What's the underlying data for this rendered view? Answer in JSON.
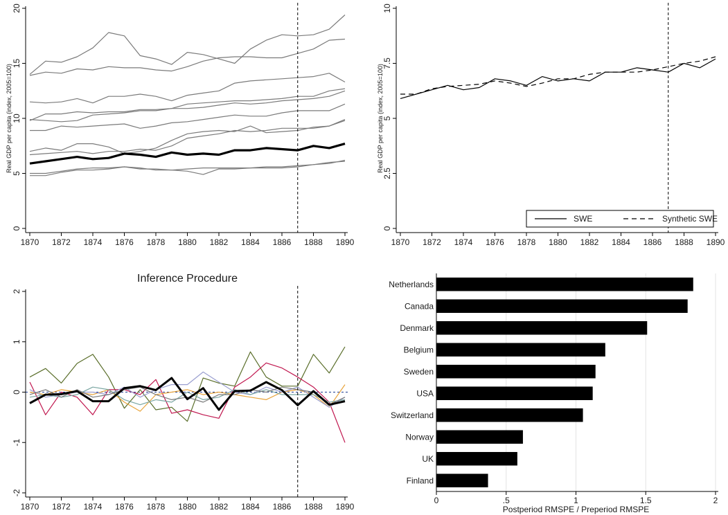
{
  "figure": {
    "background": "#ffffff"
  },
  "chart_data": [
    {
      "type": "line",
      "panel": "top-left",
      "title": "",
      "xlabel": "",
      "ylabel": "Real GDP per capita (index, 2005=100)",
      "xlim": [
        1870,
        1890
      ],
      "ylim": [
        0,
        20
      ],
      "xticks": [
        1870,
        1872,
        1874,
        1876,
        1878,
        1880,
        1882,
        1884,
        1886,
        1888,
        1890
      ],
      "yticks": [
        0,
        5,
        10,
        15,
        20
      ],
      "ytick_labels": [
        "0",
        "5",
        "10",
        "15",
        "20"
      ],
      "vline": 1887,
      "grid": false,
      "x": [
        1870,
        1871,
        1872,
        1873,
        1874,
        1875,
        1876,
        1877,
        1878,
        1879,
        1880,
        1881,
        1882,
        1883,
        1884,
        1885,
        1886,
        1887,
        1888,
        1889,
        1890
      ],
      "series": [
        {
          "color": "#7a7a7a",
          "width": 1.2,
          "values": [
            14.0,
            15.2,
            15.1,
            15.6,
            16.4,
            17.8,
            17.5,
            15.7,
            15.4,
            14.9,
            16.0,
            15.8,
            15.4,
            15.0,
            16.3,
            17.1,
            17.6,
            17.5,
            17.6,
            18.1,
            19.4
          ]
        },
        {
          "color": "#7a7a7a",
          "width": 1.2,
          "values": [
            13.9,
            14.2,
            14.1,
            14.5,
            14.4,
            14.7,
            14.6,
            14.6,
            14.4,
            14.3,
            14.7,
            15.2,
            15.5,
            15.6,
            15.6,
            15.5,
            15.5,
            15.9,
            16.3,
            17.1,
            17.2
          ]
        },
        {
          "color": "#7a7a7a",
          "width": 1.2,
          "values": [
            11.5,
            11.4,
            11.5,
            11.8,
            11.4,
            12.0,
            12.0,
            12.2,
            12.0,
            11.6,
            12.1,
            12.3,
            12.5,
            13.2,
            13.4,
            13.5,
            13.6,
            13.7,
            13.8,
            14.1,
            13.3
          ]
        },
        {
          "color": "#7a7a7a",
          "width": 1.2,
          "values": [
            9.8,
            10.4,
            10.4,
            10.6,
            10.5,
            10.6,
            10.6,
            10.8,
            10.8,
            10.9,
            11.3,
            11.4,
            11.5,
            11.6,
            11.6,
            11.7,
            11.8,
            12.0,
            12.0,
            12.5,
            12.7
          ]
        },
        {
          "color": "#7a7a7a",
          "width": 1.2,
          "values": [
            9.9,
            9.8,
            9.7,
            9.8,
            10.3,
            10.4,
            10.5,
            10.7,
            10.7,
            10.9,
            10.9,
            11.0,
            11.2,
            11.4,
            11.3,
            11.4,
            11.6,
            11.7,
            11.8,
            12.0,
            12.5
          ]
        },
        {
          "color": "#7a7a7a",
          "width": 1.2,
          "values": [
            8.9,
            8.9,
            9.3,
            9.2,
            9.3,
            9.4,
            9.5,
            9.1,
            9.3,
            9.6,
            9.7,
            9.9,
            10.1,
            10.3,
            10.2,
            10.2,
            10.5,
            10.7,
            10.7,
            10.7,
            11.3
          ]
        },
        {
          "color": "#7a7a7a",
          "width": 1.2,
          "values": [
            7.0,
            7.3,
            7.1,
            7.7,
            7.7,
            7.4,
            6.8,
            7.0,
            7.3,
            8.0,
            8.6,
            8.8,
            8.9,
            8.8,
            9.3,
            8.7,
            8.8,
            8.9,
            9.2,
            9.3,
            9.9
          ]
        },
        {
          "color": "#7a7a7a",
          "width": 1.2,
          "values": [
            6.7,
            6.8,
            6.9,
            7.0,
            6.8,
            7.0,
            7.0,
            7.2,
            7.1,
            7.5,
            8.2,
            8.4,
            8.6,
            8.9,
            8.8,
            8.9,
            9.1,
            9.1,
            9.1,
            9.3,
            9.8
          ]
        },
        {
          "color": "#7a7a7a",
          "width": 1.2,
          "values": [
            5.0,
            5.0,
            5.2,
            5.4,
            5.5,
            5.5,
            5.6,
            5.5,
            5.3,
            5.3,
            5.2,
            4.9,
            5.4,
            5.4,
            5.5,
            5.5,
            5.5,
            5.6,
            5.8,
            6.0,
            6.1
          ]
        },
        {
          "color": "#7a7a7a",
          "width": 1.2,
          "values": [
            4.8,
            4.8,
            5.1,
            5.3,
            5.3,
            5.4,
            5.6,
            5.4,
            5.4,
            5.3,
            5.4,
            5.5,
            5.5,
            5.5,
            5.5,
            5.6,
            5.6,
            5.7,
            5.8,
            5.9,
            6.2
          ]
        },
        {
          "color": "#000000",
          "width": 3.2,
          "values": [
            5.9,
            6.1,
            6.3,
            6.5,
            6.3,
            6.4,
            6.8,
            6.7,
            6.5,
            6.9,
            6.7,
            6.8,
            6.7,
            7.1,
            7.1,
            7.3,
            7.2,
            7.1,
            7.5,
            7.3,
            7.7
          ]
        }
      ]
    },
    {
      "type": "line",
      "panel": "top-right",
      "title": "",
      "xlabel": "",
      "ylabel": "Real GDP per capita (index, 2005=100)",
      "xlim": [
        1870,
        1890
      ],
      "ylim": [
        0,
        10
      ],
      "xticks": [
        1870,
        1872,
        1874,
        1876,
        1878,
        1880,
        1882,
        1884,
        1886,
        1888,
        1890
      ],
      "yticks": [
        0,
        2.5,
        5,
        7.5,
        10
      ],
      "ytick_labels": [
        "0",
        "2.5",
        "5",
        "7.5",
        "10"
      ],
      "vline": 1887,
      "grid": false,
      "legend": {
        "position": "bottom-right",
        "items": [
          "SWE",
          "Synthetic SWE"
        ]
      },
      "x": [
        1870,
        1871,
        1872,
        1873,
        1874,
        1875,
        1876,
        1877,
        1878,
        1879,
        1880,
        1881,
        1882,
        1883,
        1884,
        1885,
        1886,
        1887,
        1888,
        1889,
        1890
      ],
      "series": [
        {
          "name": "SWE",
          "color": "#000000",
          "width": 1.2,
          "dash": "",
          "values": [
            5.9,
            6.1,
            6.3,
            6.5,
            6.3,
            6.4,
            6.8,
            6.7,
            6.5,
            6.9,
            6.7,
            6.8,
            6.7,
            7.1,
            7.1,
            7.3,
            7.2,
            7.1,
            7.5,
            7.3,
            7.7
          ]
        },
        {
          "name": "Synthetic SWE",
          "color": "#000000",
          "width": 1.2,
          "dash": "7,5",
          "values": [
            6.1,
            6.1,
            6.35,
            6.45,
            6.5,
            6.55,
            6.7,
            6.6,
            6.45,
            6.6,
            6.8,
            6.8,
            7.0,
            7.1,
            7.1,
            7.1,
            7.2,
            7.35,
            7.5,
            7.6,
            7.8
          ]
        }
      ]
    },
    {
      "type": "line",
      "panel": "bottom-left",
      "title": "Inference Procedure",
      "xlabel": "",
      "ylabel": "",
      "xlim": [
        1870,
        1890
      ],
      "ylim": [
        -2,
        2
      ],
      "xticks": [
        1870,
        1872,
        1874,
        1876,
        1878,
        1880,
        1882,
        1884,
        1886,
        1888,
        1890
      ],
      "yticks": [
        -2,
        -1,
        0,
        1,
        2
      ],
      "ytick_labels": [
        "-2",
        "-1",
        "0",
        "1",
        "2"
      ],
      "vline": 1887,
      "hline": 0,
      "grid": false,
      "x": [
        1870,
        1871,
        1872,
        1873,
        1874,
        1875,
        1876,
        1877,
        1878,
        1879,
        1880,
        1881,
        1882,
        1883,
        1884,
        1885,
        1886,
        1887,
        1888,
        1889,
        1890
      ],
      "series": [
        {
          "color": "#5a6e2a",
          "width": 1.2,
          "values": [
            0.3,
            0.47,
            0.18,
            0.57,
            0.75,
            0.3,
            -0.32,
            0.05,
            -0.35,
            -0.3,
            -0.58,
            0.28,
            0.18,
            0.12,
            0.8,
            0.3,
            0.12,
            0.12,
            0.75,
            0.38,
            0.9
          ]
        },
        {
          "color": "#c0174f",
          "width": 1.2,
          "values": [
            0.2,
            -0.45,
            0.0,
            -0.1,
            -0.45,
            0.05,
            0.05,
            -0.05,
            0.25,
            -0.42,
            -0.35,
            -0.45,
            -0.52,
            0.1,
            0.3,
            0.58,
            0.48,
            0.3,
            0.1,
            -0.2,
            -1.0
          ]
        },
        {
          "color": "#e8a33a",
          "width": 1.2,
          "values": [
            0.0,
            -0.05,
            0.05,
            0.0,
            -0.05,
            0.05,
            -0.2,
            -0.38,
            -0.05,
            0.0,
            0.05,
            -0.05,
            0.0,
            -0.05,
            -0.1,
            -0.15,
            0.0,
            0.05,
            -0.05,
            -0.3,
            0.15
          ]
        },
        {
          "color": "#9a9fd0",
          "width": 1.2,
          "values": [
            0.05,
            -0.1,
            -0.05,
            0.0,
            0.0,
            -0.05,
            0.1,
            -0.1,
            0.05,
            0.15,
            0.15,
            0.4,
            0.2,
            0.0,
            -0.05,
            0.1,
            0.0,
            0.1,
            -0.1,
            -0.3,
            -0.1
          ]
        },
        {
          "color": "#7aa6a2",
          "width": 1.2,
          "values": [
            -0.1,
            -0.05,
            -0.1,
            -0.05,
            0.1,
            0.05,
            -0.15,
            -0.25,
            -0.15,
            -0.2,
            0.0,
            -0.15,
            -0.1,
            0.05,
            -0.05,
            0.05,
            -0.05,
            -0.05,
            -0.05,
            -0.2,
            -0.15
          ]
        },
        {
          "color": "#7a7a7a",
          "width": 1.2,
          "values": [
            -0.05,
            0.05,
            -0.1,
            0.05,
            -0.1,
            -0.05,
            0.05,
            0.1,
            -0.05,
            -0.15,
            -0.1,
            -0.2,
            -0.05,
            -0.05,
            0.05,
            0.0,
            0.1,
            0.05,
            0.0,
            -0.25,
            -0.1
          ]
        },
        {
          "color": "#000000",
          "width": 3.0,
          "values": [
            -0.22,
            -0.05,
            -0.04,
            0.02,
            -0.18,
            -0.18,
            0.08,
            0.12,
            0.04,
            0.28,
            -0.14,
            0.08,
            -0.35,
            0.02,
            0.03,
            0.2,
            0.04,
            -0.26,
            0.02,
            -0.25,
            -0.18
          ]
        }
      ]
    },
    {
      "type": "bar",
      "panel": "bottom-right",
      "orientation": "horizontal",
      "title": "",
      "xlabel": "Postperiod RMSPE / Preperiod RMSPE",
      "ylabel": "",
      "xlim": [
        0,
        2
      ],
      "xticks": [
        0,
        0.5,
        1,
        1.5,
        2
      ],
      "xtick_labels": [
        "0",
        ".5",
        "1",
        "1.5",
        "2"
      ],
      "grid": true,
      "bar_color": "#000000",
      "categories": [
        "Netherlands",
        "Canada",
        "Denmark",
        "Belgium",
        "Sweden",
        "USA",
        "Switzerland",
        "Norway",
        "UK",
        "Finland"
      ],
      "values": [
        1.84,
        1.8,
        1.51,
        1.21,
        1.14,
        1.12,
        1.05,
        0.62,
        0.58,
        0.37
      ]
    }
  ]
}
